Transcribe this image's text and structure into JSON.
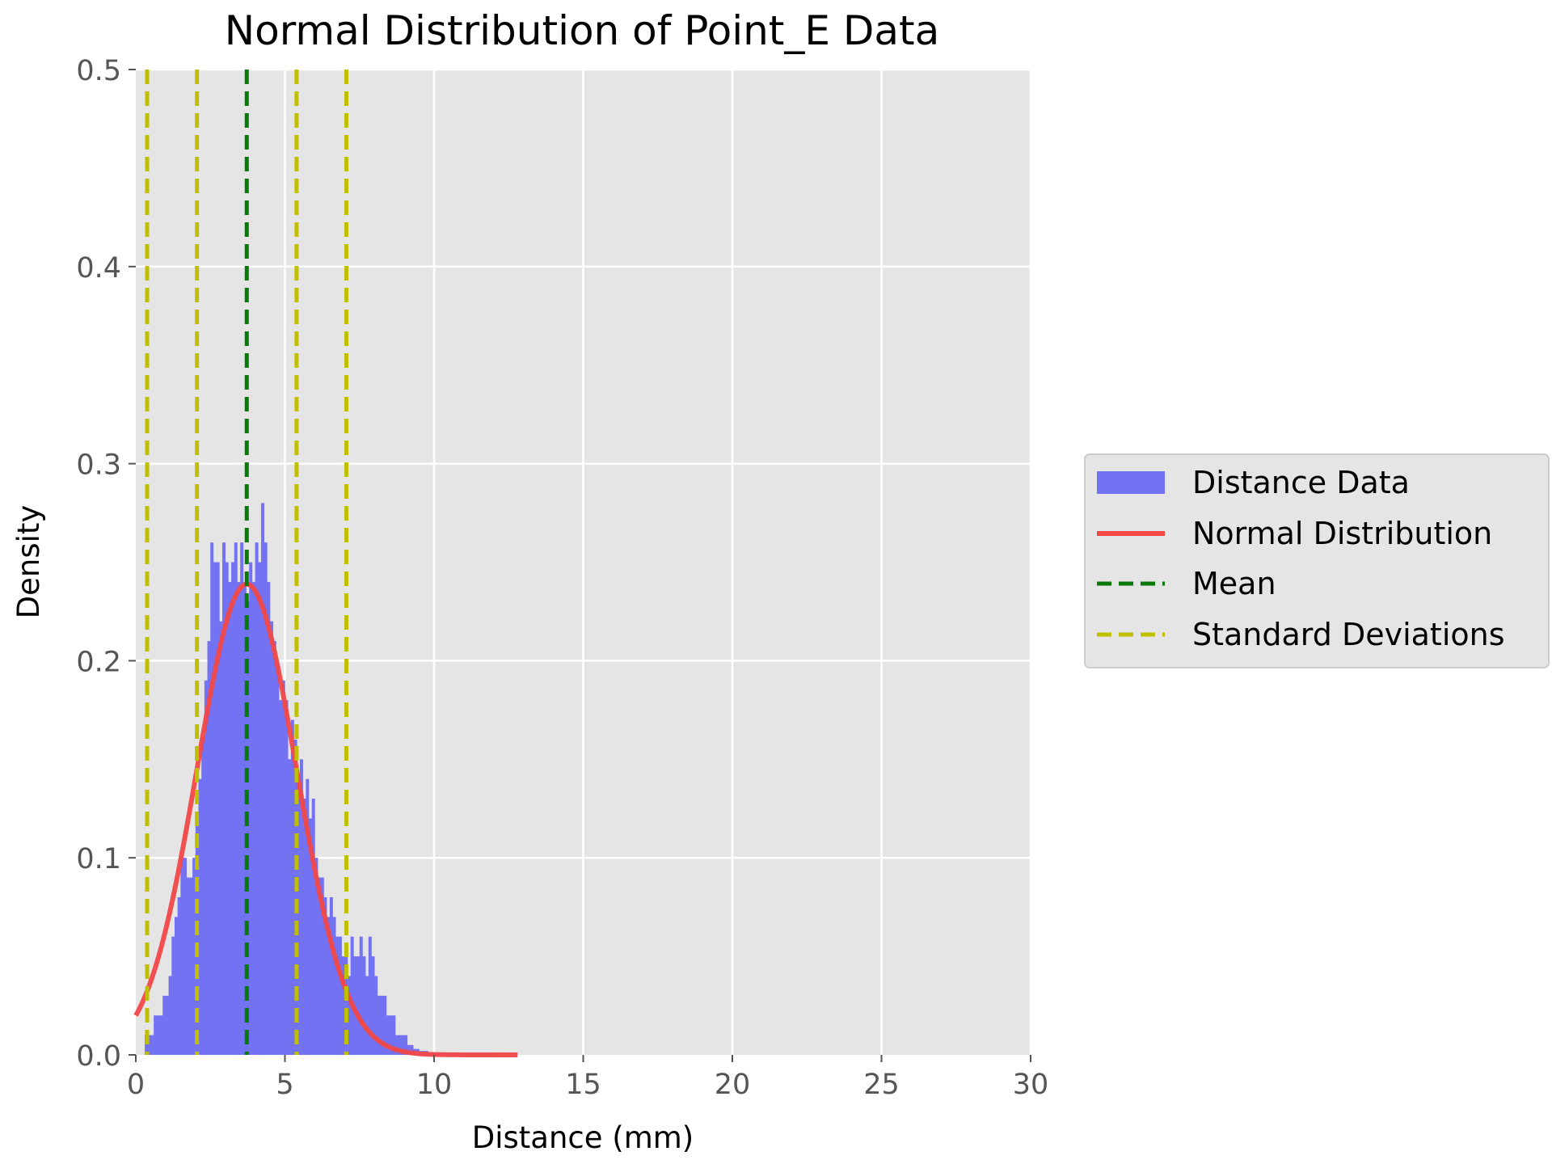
{
  "chart_data": {
    "type": "bar",
    "title": "Normal Distribution of Point_E Data",
    "xlabel": "Distance (mm)",
    "ylabel": "Density",
    "xlim": [
      0,
      30
    ],
    "ylim": [
      0,
      0.5
    ],
    "xticks": [
      0,
      5,
      10,
      15,
      20,
      25,
      30
    ],
    "yticks": [
      0.0,
      0.1,
      0.2,
      0.3,
      0.4,
      0.5
    ],
    "xtick_labels": [
      "0",
      "5",
      "10",
      "15",
      "20",
      "25",
      "30"
    ],
    "ytick_labels": [
      "0.0",
      "0.1",
      "0.2",
      "0.3",
      "0.4",
      "0.5"
    ],
    "grid": true,
    "legend_position": "outside-right",
    "legend": [
      {
        "label": "Distance Data",
        "kind": "patch",
        "color": "#7272f2"
      },
      {
        "label": "Normal Distribution",
        "kind": "line",
        "color": "#f24848"
      },
      {
        "label": "Mean",
        "kind": "dashed-line",
        "color": "#087808"
      },
      {
        "label": "Standard Deviations",
        "kind": "dashed-line",
        "color": "#bfbf00"
      }
    ],
    "histogram": {
      "name": "Distance Data",
      "bin_start": 0.3,
      "bin_width": 0.1,
      "densities": [
        0.01,
        0.01,
        0.01,
        0.02,
        0.02,
        0.02,
        0.03,
        0.03,
        0.04,
        0.06,
        0.07,
        0.08,
        0.1,
        0.1,
        0.09,
        0.09,
        0.1,
        0.12,
        0.14,
        0.16,
        0.19,
        0.21,
        0.26,
        0.25,
        0.25,
        0.22,
        0.26,
        0.25,
        0.24,
        0.25,
        0.26,
        0.24,
        0.26,
        0.24,
        0.23,
        0.25,
        0.24,
        0.26,
        0.25,
        0.28,
        0.26,
        0.24,
        0.22,
        0.21,
        0.2,
        0.18,
        0.19,
        0.18,
        0.15,
        0.17,
        0.16,
        0.14,
        0.15,
        0.13,
        0.14,
        0.12,
        0.13,
        0.1,
        0.09,
        0.09,
        0.08,
        0.07,
        0.08,
        0.07,
        0.06,
        0.06,
        0.05,
        0.05,
        0.04,
        0.06,
        0.05,
        0.05,
        0.06,
        0.05,
        0.04,
        0.06,
        0.05,
        0.04,
        0.03,
        0.03,
        0.03,
        0.02,
        0.02,
        0.02,
        0.01,
        0.01,
        0.01,
        0.01,
        0.005,
        0.005,
        0.003,
        0.003,
        0.002,
        0.002,
        0.002,
        0.001,
        0.001,
        0.001,
        0.001,
        0.001,
        0.001,
        0.001,
        0.001,
        0.001,
        0.001,
        0.001,
        0.001,
        0.001,
        0.001,
        0.001,
        0.001,
        0.001,
        0.001,
        0.001,
        0.001,
        0.001,
        0.001,
        0.001
      ]
    },
    "normal_distribution": {
      "name": "Normal Distribution",
      "mean": 3.72,
      "std": 1.67,
      "x_range": [
        0,
        12.8
      ]
    },
    "mean_line": {
      "name": "Mean",
      "x": 3.72
    },
    "std_lines": {
      "name": "Standard Deviations",
      "x": [
        0.38,
        2.05,
        5.39,
        7.06
      ]
    },
    "colors": {
      "plot_background": "#e5e5e5",
      "grid": "#ffffff",
      "histogram": "#7272f2",
      "normal_curve": "#f24848",
      "mean": "#087808",
      "std": "#bfbf00",
      "tick_text": "#555555"
    }
  }
}
